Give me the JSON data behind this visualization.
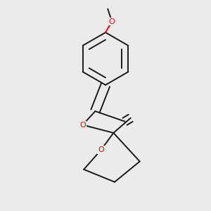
{
  "bg_color": "#ebebeb",
  "bond_color": "#1a1a1a",
  "oxygen_color": "#dd0000",
  "bond_width": 1.4,
  "figsize": [
    3.0,
    3.0
  ],
  "dpi": 100,
  "xlim": [
    0.15,
    0.85
  ],
  "ylim": [
    0.05,
    0.97
  ]
}
